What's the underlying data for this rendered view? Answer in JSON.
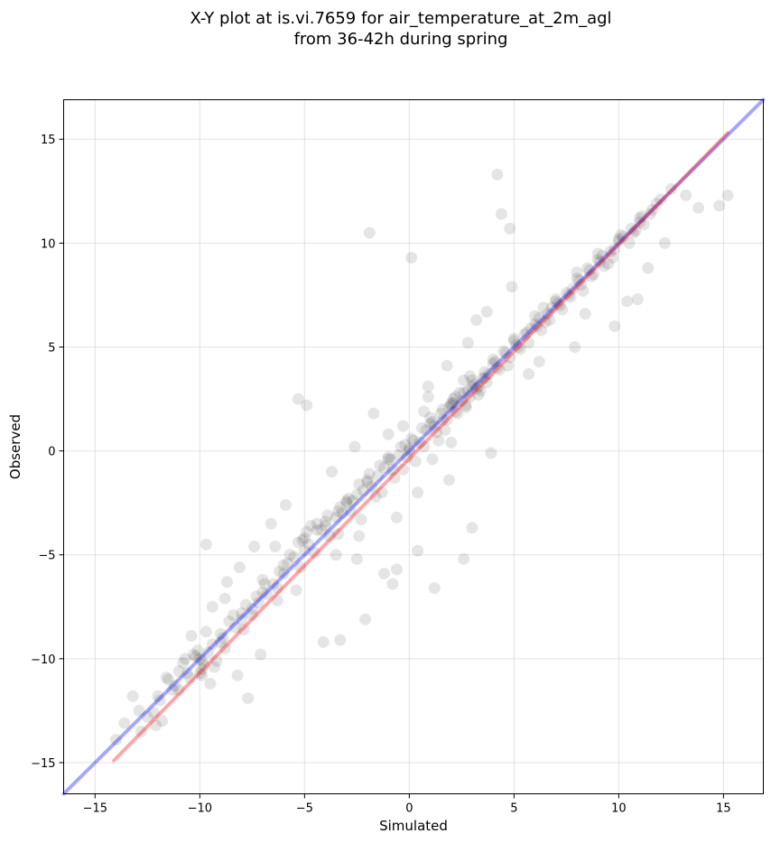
{
  "chart_data": {
    "type": "scatter",
    "title_line1": "X-Y plot at is.vi.7659 for air_temperature_at_2m_agl",
    "title_line2": "from 36-42h during spring",
    "xlabel": "Simulated",
    "ylabel": "Observed",
    "xlim": [
      -16.5,
      16.9
    ],
    "ylim": [
      -16.5,
      16.9
    ],
    "x_ticks": [
      -15,
      -10,
      -5,
      0,
      5,
      10,
      15
    ],
    "y_ticks": [
      -15,
      -10,
      -5,
      0,
      5,
      10,
      15
    ],
    "x_tick_labels": [
      "−15",
      "−10",
      "−5",
      "0",
      "5",
      "10",
      "15"
    ],
    "y_tick_labels": [
      "−15",
      "−10",
      "−5",
      "0",
      "5",
      "10",
      "15"
    ],
    "grid": true,
    "marker_color": "#000000",
    "marker_alpha": 0.1,
    "lines": [
      {
        "role": "one-to-one",
        "color": "#0000ff",
        "alpha": 0.35,
        "x": [
          -16.5,
          16.9
        ],
        "y": [
          -16.5,
          16.9
        ]
      },
      {
        "role": "regression",
        "color": "#ff0000",
        "alpha": 0.35,
        "x": [
          -14.1,
          15.2
        ],
        "y": [
          -14.9,
          15.3
        ]
      }
    ],
    "points_x": [
      -14.0,
      -13.2,
      -12.8,
      -12.5,
      -12.1,
      -11.9,
      -11.8,
      -11.5,
      -11.2,
      -11.0,
      -10.8,
      -10.5,
      -10.2,
      -10.0,
      -9.8,
      -9.6,
      -9.5,
      -9.3,
      -9.9,
      -10.1,
      -9.7,
      -9.4,
      -9.0,
      -8.8,
      -8.6,
      -8.3,
      -8.0,
      -7.8,
      -7.5,
      -7.2,
      -7.0,
      -6.8,
      -6.5,
      -6.3,
      -6.0,
      -5.8,
      -5.5,
      -5.2,
      -5.0,
      -4.8,
      -4.5,
      -4.2,
      -4.0,
      -3.8,
      -3.5,
      -3.2,
      -3.0,
      -2.8,
      -2.5,
      -2.2,
      -2.0,
      -1.8,
      -1.5,
      -1.2,
      -1.0,
      -0.8,
      -0.5,
      -0.2,
      0.0,
      0.2,
      0.5,
      0.8,
      1.0,
      1.2,
      1.5,
      1.8,
      2.0,
      2.2,
      2.5,
      2.8,
      3.0,
      3.2,
      3.5,
      3.8,
      4.0,
      4.2,
      4.5,
      4.8,
      5.0,
      5.2,
      5.5,
      5.8,
      6.0,
      6.2,
      6.5,
      6.8,
      7.0,
      7.2,
      7.5,
      7.8,
      8.0,
      8.2,
      8.5,
      8.8,
      9.0,
      9.2,
      9.5,
      9.8,
      10.0,
      10.2,
      10.5,
      10.8,
      11.0,
      11.2,
      11.5,
      11.8,
      12.0,
      12.5,
      13.2,
      13.8,
      14.8,
      15.2,
      -12.2,
      -11.6,
      -10.7,
      -10.3,
      -9.9,
      -9.2,
      -8.9,
      -8.4,
      -7.9,
      -7.3,
      -6.9,
      -6.2,
      -5.7,
      -5.3,
      -4.9,
      -4.4,
      -3.9,
      -3.3,
      -2.9,
      -2.4,
      -1.9,
      -1.4,
      -0.9,
      -0.4,
      0.1,
      0.6,
      1.1,
      1.6,
      2.1,
      2.6,
      3.1,
      3.6,
      4.1,
      4.6,
      5.1,
      5.6,
      6.1,
      6.6,
      7.1,
      7.6,
      8.1,
      8.6,
      9.1,
      9.6,
      10.1,
      10.6,
      11.1,
      11.6,
      -12.0,
      -11.0,
      -10.0,
      -9.0,
      -8.0,
      -7.0,
      -6.0,
      -5.0,
      -4.0,
      -3.0,
      -2.0,
      -1.0,
      0.0,
      1.0,
      2.0,
      3.0,
      4.0,
      5.0,
      6.0,
      7.0,
      8.0,
      9.0,
      10.0,
      11.0,
      -9.7,
      -7.5,
      -6.3,
      -5.4,
      -3.4,
      -2.3,
      -1.3,
      -0.3,
      0.7,
      1.7,
      2.7,
      3.7,
      4.7,
      5.7,
      6.7,
      7.7,
      8.7,
      9.7,
      10.7,
      -9.9,
      -5.1,
      -3.5,
      -2.4,
      -1.6,
      -0.7,
      0.3,
      1.3,
      2.3,
      3.3,
      4.3,
      5.3,
      6.3,
      7.3,
      8.3,
      9.3,
      -4.7,
      -2.5,
      -0.6,
      0.4,
      2.0,
      3.9,
      2.4,
      2.9,
      3.3,
      2.1,
      1.6,
      2.6,
      3.6,
      1.9,
      2.7,
      3.4,
      2.2,
      2.9,
      -1.0,
      -0.3,
      0.9,
      -4.9,
      -5.3,
      2.6,
      4.2,
      -1.7,
      -4.4,
      -6.4,
      -0.6,
      1.2,
      3.0,
      6.4,
      -8.8,
      -7.1,
      9.8,
      10.9,
      -1.9,
      0.1,
      1.4,
      -0.1,
      -2.7,
      -3.4,
      0.7,
      0.9,
      1.9,
      -7.7,
      -8.2,
      -4.1,
      -3.3,
      -2.1,
      1.1,
      3.7,
      4.9,
      5.7,
      6.2,
      7.9,
      8.4,
      10.4,
      11.4,
      12.2,
      -13.6,
      -12.9,
      -11.3,
      -10.6,
      4.4,
      4.8,
      0.4,
      -1.2,
      -0.8,
      1.8,
      2.8,
      3.2,
      -3.7,
      -2.6,
      -5.9,
      -6.6,
      -7.4,
      -8.1,
      -8.7,
      -9.4,
      -10.4
    ],
    "points_y": [
      -13.9,
      -11.8,
      -13.5,
      -12.8,
      -13.2,
      -12.0,
      -13.0,
      -11.0,
      -11.3,
      -10.6,
      -10.2,
      -10.9,
      -9.9,
      -10.0,
      -10.3,
      -9.7,
      -11.2,
      -10.4,
      -10.8,
      -9.6,
      -4.5,
      -9.3,
      -8.8,
      -9.5,
      -8.2,
      -8.5,
      -7.8,
      -7.4,
      -7.9,
      -7.3,
      -6.8,
      -6.9,
      -6.4,
      -6.6,
      -5.9,
      -5.4,
      -5.1,
      -5.6,
      -4.8,
      -4.5,
      -4.9,
      -3.8,
      -3.6,
      -4.1,
      -3.2,
      -3.0,
      -2.5,
      -2.9,
      -2.1,
      -1.9,
      -1.4,
      -1.7,
      -1.2,
      -0.8,
      -0.4,
      -0.9,
      -0.2,
      0.3,
      0.1,
      0.5,
      0.4,
      1.0,
      1.3,
      1.2,
      1.8,
      1.5,
      2.2,
      2.6,
      2.4,
      2.9,
      3.1,
      3.0,
      3.5,
      3.7,
      4.2,
      4.0,
      4.8,
      4.5,
      5.3,
      5.0,
      5.6,
      5.9,
      6.1,
      6.4,
      6.2,
      6.9,
      7.3,
      7.0,
      7.6,
      7.8,
      8.3,
      8.0,
      8.8,
      8.5,
      9.2,
      9.4,
      9.0,
      9.7,
      10.1,
      10.3,
      10.0,
      10.6,
      11.2,
      10.9,
      11.4,
      11.9,
      12.1,
      12.6,
      12.3,
      11.7,
      11.8,
      12.3,
      -12.6,
      -10.9,
      -10.0,
      -9.8,
      -10.5,
      -10.1,
      -9.0,
      -7.9,
      -8.6,
      -7.0,
      -6.4,
      -5.8,
      -5.0,
      -4.4,
      -3.9,
      -3.5,
      -3.1,
      -2.7,
      -2.3,
      -1.6,
      -1.1,
      -0.7,
      -0.4,
      0.2,
      0.6,
      1.1,
      1.4,
      2.0,
      2.5,
      2.8,
      3.2,
      3.8,
      4.3,
      4.7,
      5.1,
      5.7,
      6.0,
      6.6,
      7.1,
      7.5,
      8.2,
      8.7,
      9.1,
      9.6,
      10.4,
      10.7,
      11.3,
      11.6,
      -11.8,
      -11.5,
      -10.7,
      -9.2,
      -8.1,
      -6.2,
      -5.5,
      -4.2,
      -3.4,
      -2.4,
      -1.5,
      -0.3,
      0.0,
      1.6,
      2.3,
      3.4,
      4.4,
      5.4,
      6.5,
      7.2,
      8.6,
      9.5,
      10.2,
      11.0,
      -8.7,
      -7.6,
      -7.2,
      -6.7,
      -4.0,
      -3.3,
      -2.0,
      -0.9,
      0.2,
      1.0,
      2.1,
      3.3,
      4.1,
      5.2,
      6.3,
      7.4,
      8.4,
      9.3,
      10.5,
      -10.1,
      -4.3,
      -5.0,
      -4.1,
      -2.2,
      -1.3,
      -0.5,
      0.9,
      1.8,
      2.7,
      3.9,
      4.9,
      5.8,
      6.8,
      7.7,
      8.9,
      -3.6,
      -5.2,
      -3.2,
      -2.0,
      0.4,
      -0.1,
      2.8,
      2.6,
      3.1,
      2.3,
      1.5,
      3.4,
      3.5,
      2.1,
      2.2,
      2.9,
      1.9,
      3.6,
      0.8,
      1.2,
      3.1,
      2.2,
      2.5,
      -5.2,
      13.3,
      1.8,
      -3.8,
      -4.6,
      -5.7,
      -6.6,
      -3.7,
      6.9,
      -7.1,
      -9.8,
      6.0,
      7.3,
      10.5,
      9.3,
      0.5,
      -0.3,
      -2.4,
      -2.9,
      1.9,
      2.6,
      -1.4,
      -11.9,
      -10.8,
      -9.2,
      -9.1,
      -8.1,
      -0.4,
      6.7,
      7.9,
      3.7,
      4.3,
      5.0,
      6.6,
      7.2,
      8.8,
      10.0,
      -13.1,
      -12.5,
      -11.5,
      -10.7,
      11.4,
      10.7,
      -4.8,
      -5.9,
      -6.4,
      4.1,
      5.2,
      6.3,
      -1.0,
      0.2,
      -2.6,
      -3.5,
      -4.6,
      -5.6,
      -6.3,
      -7.5,
      -8.9
    ]
  }
}
